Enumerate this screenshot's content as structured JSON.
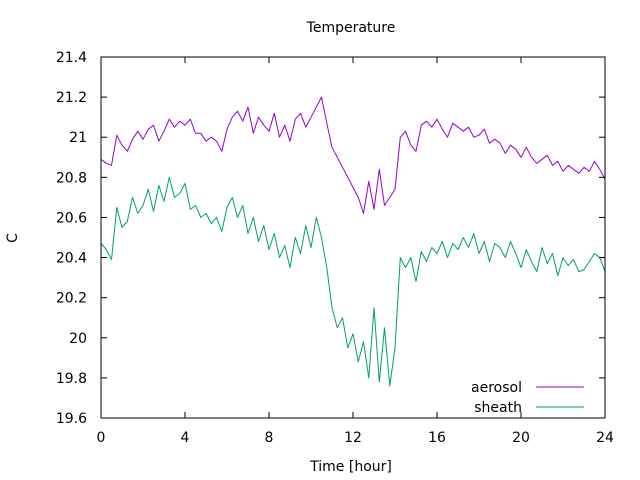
{
  "chart_data": {
    "type": "line",
    "title": "Temperature",
    "xlabel": "Time [hour]",
    "ylabel": "C",
    "xlim": [
      0,
      24
    ],
    "ylim": [
      19.6,
      21.4
    ],
    "xticks": [
      0,
      4,
      8,
      12,
      16,
      20,
      24
    ],
    "yticks": [
      19.6,
      19.8,
      20,
      20.2,
      20.4,
      20.6,
      20.8,
      21,
      21.2,
      21.4
    ],
    "xtick_labels": [
      "0",
      "4",
      "8",
      "12",
      "16",
      "20",
      "24"
    ],
    "ytick_labels": [
      "19.6",
      "19.8",
      "20",
      "20.2",
      "20.4",
      "20.6",
      "20.8",
      "21",
      "21.2",
      "21.4"
    ],
    "grid": false,
    "legend_position": "bottom-right",
    "series": [
      {
        "name": "aerosol",
        "color": "#9400d3",
        "x": [
          0,
          0.25,
          0.5,
          0.75,
          1,
          1.25,
          1.5,
          1.75,
          2,
          2.25,
          2.5,
          2.75,
          3,
          3.25,
          3.5,
          3.75,
          4,
          4.25,
          4.5,
          4.75,
          5,
          5.25,
          5.5,
          5.75,
          6,
          6.25,
          6.5,
          6.75,
          7,
          7.25,
          7.5,
          7.75,
          8,
          8.25,
          8.5,
          8.75,
          9,
          9.25,
          9.5,
          9.75,
          10,
          10.25,
          10.5,
          10.75,
          11,
          11.25,
          11.5,
          11.75,
          12,
          12.25,
          12.5,
          12.75,
          13,
          13.25,
          13.5,
          13.75,
          14,
          14.25,
          14.5,
          14.75,
          15,
          15.25,
          15.5,
          15.75,
          16,
          16.25,
          16.5,
          16.75,
          17,
          17.25,
          17.5,
          17.75,
          18,
          18.25,
          18.5,
          18.75,
          19,
          19.25,
          19.5,
          19.75,
          20,
          20.25,
          20.5,
          20.75,
          21,
          21.25,
          21.5,
          21.75,
          22,
          22.25,
          22.5,
          22.75,
          23,
          23.25,
          23.5,
          23.75,
          24
        ],
        "y": [
          20.89,
          20.87,
          20.86,
          21.01,
          20.96,
          20.93,
          20.99,
          21.03,
          20.99,
          21.04,
          21.06,
          20.98,
          21.03,
          21.09,
          21.05,
          21.08,
          21.06,
          21.09,
          21.02,
          21.02,
          20.98,
          21.0,
          20.98,
          20.93,
          21.04,
          21.1,
          21.13,
          21.08,
          21.15,
          21.02,
          21.1,
          21.06,
          21.03,
          21.12,
          21.0,
          21.06,
          20.98,
          21.09,
          21.12,
          21.05,
          21.1,
          21.15,
          21.2,
          21.07,
          20.95,
          20.9,
          20.85,
          20.8,
          20.75,
          20.7,
          20.62,
          20.78,
          20.64,
          20.84,
          20.66,
          20.7,
          20.74,
          21.0,
          21.03,
          20.96,
          20.93,
          21.06,
          21.08,
          21.05,
          21.09,
          21.04,
          21.0,
          21.07,
          21.05,
          21.03,
          21.05,
          21.0,
          21.01,
          21.04,
          20.97,
          20.99,
          20.97,
          20.92,
          20.96,
          20.94,
          20.9,
          20.95,
          20.9,
          20.87,
          20.89,
          20.91,
          20.86,
          20.88,
          20.83,
          20.86,
          20.84,
          20.82,
          20.85,
          20.83,
          20.88,
          20.84,
          20.79
        ]
      },
      {
        "name": "sheath",
        "color": "#009e73",
        "x": [
          0,
          0.25,
          0.5,
          0.75,
          1,
          1.25,
          1.5,
          1.75,
          2,
          2.25,
          2.5,
          2.75,
          3,
          3.25,
          3.5,
          3.75,
          4,
          4.25,
          4.5,
          4.75,
          5,
          5.25,
          5.5,
          5.75,
          6,
          6.25,
          6.5,
          6.75,
          7,
          7.25,
          7.5,
          7.75,
          8,
          8.25,
          8.5,
          8.75,
          9,
          9.25,
          9.5,
          9.75,
          10,
          10.25,
          10.5,
          10.75,
          11,
          11.25,
          11.5,
          11.75,
          12,
          12.25,
          12.5,
          12.75,
          13,
          13.25,
          13.5,
          13.75,
          14,
          14.25,
          14.5,
          14.75,
          15,
          15.25,
          15.5,
          15.75,
          16,
          16.25,
          16.5,
          16.75,
          17,
          17.25,
          17.5,
          17.75,
          18,
          18.25,
          18.5,
          18.75,
          19,
          19.25,
          19.5,
          19.75,
          20,
          20.25,
          20.5,
          20.75,
          21,
          21.25,
          21.5,
          21.75,
          22,
          22.25,
          22.5,
          22.75,
          23,
          23.25,
          23.5,
          23.75,
          24
        ],
        "y": [
          20.47,
          20.44,
          20.39,
          20.65,
          20.55,
          20.58,
          20.7,
          20.62,
          20.66,
          20.74,
          20.63,
          20.76,
          20.68,
          20.8,
          20.7,
          20.72,
          20.77,
          20.64,
          20.66,
          20.6,
          20.62,
          20.57,
          20.6,
          20.53,
          20.65,
          20.7,
          20.6,
          20.66,
          20.52,
          20.6,
          20.48,
          20.56,
          20.44,
          20.52,
          20.4,
          20.46,
          20.35,
          20.5,
          20.42,
          20.56,
          20.45,
          20.6,
          20.5,
          20.35,
          20.15,
          20.05,
          20.1,
          19.95,
          20.02,
          19.88,
          19.98,
          19.8,
          20.15,
          19.78,
          20.05,
          19.76,
          19.95,
          20.4,
          20.35,
          20.4,
          20.28,
          20.43,
          20.38,
          20.45,
          20.42,
          20.48,
          20.4,
          20.47,
          20.44,
          20.5,
          20.45,
          20.52,
          20.42,
          20.48,
          20.38,
          20.47,
          20.45,
          20.4,
          20.48,
          20.42,
          20.35,
          20.44,
          20.38,
          20.33,
          20.45,
          20.37,
          20.42,
          20.31,
          20.4,
          20.36,
          20.39,
          20.33,
          20.34,
          20.38,
          20.42,
          20.4,
          20.33
        ]
      }
    ]
  }
}
